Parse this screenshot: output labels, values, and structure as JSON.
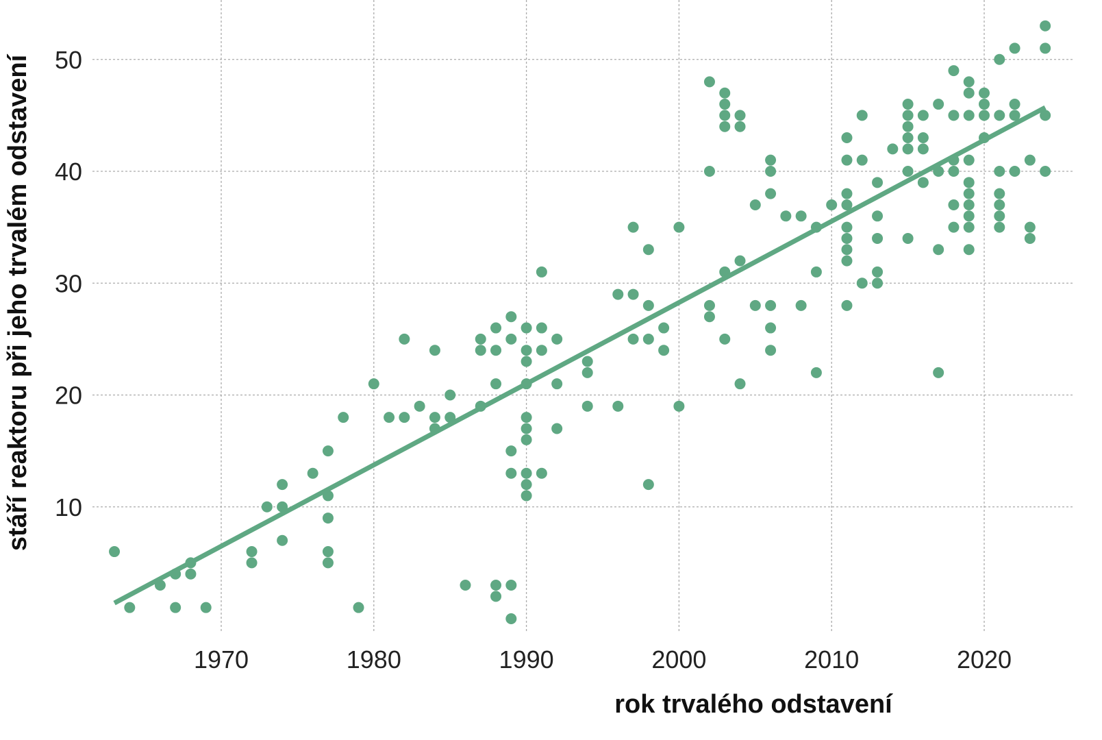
{
  "chart_data": {
    "type": "scatter",
    "title": "",
    "xlabel": "rok trvalého odstavení",
    "ylabel": "stáří reaktoru při jeho trvalém odstavení",
    "xlim": [
      1961,
      2026
    ],
    "ylim": [
      -1,
      55
    ],
    "xticks": [
      1970,
      1980,
      1990,
      2000,
      2010,
      2020
    ],
    "yticks": [
      10,
      20,
      30,
      40,
      50
    ],
    "grid": true,
    "color": "#5fa883",
    "trendline": {
      "x": [
        1963,
        2024
      ],
      "y": [
        1.4,
        45.7
      ]
    },
    "points": [
      [
        1963,
        6
      ],
      [
        1964,
        1
      ],
      [
        1966,
        3
      ],
      [
        1967,
        4
      ],
      [
        1967,
        1
      ],
      [
        1968,
        5
      ],
      [
        1968,
        4
      ],
      [
        1969,
        1
      ],
      [
        1972,
        6
      ],
      [
        1972,
        5
      ],
      [
        1973,
        10
      ],
      [
        1974,
        12
      ],
      [
        1974,
        10
      ],
      [
        1974,
        7
      ],
      [
        1976,
        13
      ],
      [
        1977,
        15
      ],
      [
        1977,
        11
      ],
      [
        1977,
        9
      ],
      [
        1977,
        6
      ],
      [
        1977,
        5
      ],
      [
        1978,
        18
      ],
      [
        1979,
        1
      ],
      [
        1980,
        21
      ],
      [
        1981,
        18
      ],
      [
        1982,
        25
      ],
      [
        1982,
        18
      ],
      [
        1983,
        19
      ],
      [
        1984,
        24
      ],
      [
        1984,
        18
      ],
      [
        1984,
        17
      ],
      [
        1985,
        20
      ],
      [
        1985,
        18
      ],
      [
        1986,
        3
      ],
      [
        1987,
        25
      ],
      [
        1987,
        24
      ],
      [
        1987,
        19
      ],
      [
        1988,
        26
      ],
      [
        1988,
        24
      ],
      [
        1988,
        21
      ],
      [
        1988,
        3
      ],
      [
        1988,
        2
      ],
      [
        1989,
        27
      ],
      [
        1989,
        25
      ],
      [
        1989,
        15
      ],
      [
        1989,
        13
      ],
      [
        1989,
        3
      ],
      [
        1989,
        0
      ],
      [
        1990,
        26
      ],
      [
        1990,
        24
      ],
      [
        1990,
        23
      ],
      [
        1990,
        21
      ],
      [
        1990,
        18
      ],
      [
        1990,
        17
      ],
      [
        1990,
        16
      ],
      [
        1990,
        13
      ],
      [
        1990,
        12
      ],
      [
        1990,
        11
      ],
      [
        1991,
        31
      ],
      [
        1991,
        26
      ],
      [
        1991,
        24
      ],
      [
        1991,
        13
      ],
      [
        1992,
        25
      ],
      [
        1992,
        21
      ],
      [
        1992,
        17
      ],
      [
        1994,
        23
      ],
      [
        1994,
        22
      ],
      [
        1994,
        19
      ],
      [
        1996,
        29
      ],
      [
        1996,
        19
      ],
      [
        1997,
        35
      ],
      [
        1997,
        29
      ],
      [
        1997,
        25
      ],
      [
        1998,
        33
      ],
      [
        1998,
        28
      ],
      [
        1998,
        25
      ],
      [
        1998,
        12
      ],
      [
        1999,
        26
      ],
      [
        1999,
        24
      ],
      [
        2000,
        35
      ],
      [
        2000,
        19
      ],
      [
        2002,
        48
      ],
      [
        2002,
        40
      ],
      [
        2002,
        28
      ],
      [
        2002,
        27
      ],
      [
        2003,
        47
      ],
      [
        2003,
        46
      ],
      [
        2003,
        45
      ],
      [
        2003,
        44
      ],
      [
        2003,
        31
      ],
      [
        2003,
        25
      ],
      [
        2004,
        45
      ],
      [
        2004,
        44
      ],
      [
        2004,
        32
      ],
      [
        2004,
        21
      ],
      [
        2005,
        37
      ],
      [
        2005,
        28
      ],
      [
        2006,
        41
      ],
      [
        2006,
        40
      ],
      [
        2006,
        38
      ],
      [
        2006,
        28
      ],
      [
        2006,
        26
      ],
      [
        2006,
        24
      ],
      [
        2007,
        36
      ],
      [
        2008,
        36
      ],
      [
        2008,
        28
      ],
      [
        2009,
        35
      ],
      [
        2009,
        31
      ],
      [
        2009,
        22
      ],
      [
        2010,
        37
      ],
      [
        2011,
        43
      ],
      [
        2011,
        41
      ],
      [
        2011,
        38
      ],
      [
        2011,
        37
      ],
      [
        2011,
        35
      ],
      [
        2011,
        34
      ],
      [
        2011,
        33
      ],
      [
        2011,
        32
      ],
      [
        2011,
        28
      ],
      [
        2012,
        45
      ],
      [
        2012,
        41
      ],
      [
        2012,
        30
      ],
      [
        2013,
        39
      ],
      [
        2013,
        36
      ],
      [
        2013,
        34
      ],
      [
        2013,
        31
      ],
      [
        2013,
        30
      ],
      [
        2014,
        42
      ],
      [
        2015,
        46
      ],
      [
        2015,
        45
      ],
      [
        2015,
        44
      ],
      [
        2015,
        43
      ],
      [
        2015,
        42
      ],
      [
        2015,
        40
      ],
      [
        2015,
        34
      ],
      [
        2016,
        45
      ],
      [
        2016,
        43
      ],
      [
        2016,
        42
      ],
      [
        2016,
        39
      ],
      [
        2017,
        46
      ],
      [
        2017,
        40
      ],
      [
        2017,
        33
      ],
      [
        2017,
        22
      ],
      [
        2018,
        49
      ],
      [
        2018,
        45
      ],
      [
        2018,
        41
      ],
      [
        2018,
        40
      ],
      [
        2018,
        37
      ],
      [
        2018,
        35
      ],
      [
        2019,
        48
      ],
      [
        2019,
        47
      ],
      [
        2019,
        45
      ],
      [
        2019,
        41
      ],
      [
        2019,
        39
      ],
      [
        2019,
        38
      ],
      [
        2019,
        37
      ],
      [
        2019,
        36
      ],
      [
        2019,
        35
      ],
      [
        2019,
        33
      ],
      [
        2020,
        47
      ],
      [
        2020,
        46
      ],
      [
        2020,
        45
      ],
      [
        2020,
        43
      ],
      [
        2021,
        50
      ],
      [
        2021,
        45
      ],
      [
        2021,
        40
      ],
      [
        2021,
        38
      ],
      [
        2021,
        37
      ],
      [
        2021,
        36
      ],
      [
        2021,
        35
      ],
      [
        2022,
        51
      ],
      [
        2022,
        46
      ],
      [
        2022,
        45
      ],
      [
        2022,
        40
      ],
      [
        2023,
        41
      ],
      [
        2023,
        35
      ],
      [
        2023,
        34
      ],
      [
        2024,
        53
      ],
      [
        2024,
        51
      ],
      [
        2024,
        45
      ],
      [
        2024,
        40
      ]
    ]
  }
}
